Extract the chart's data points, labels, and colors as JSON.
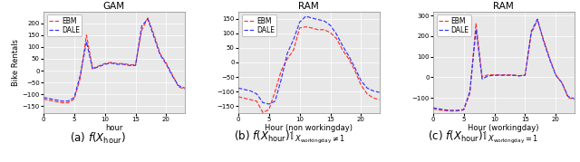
{
  "title1": "GAM",
  "title2": "RAM",
  "title3": "RAM",
  "xlabel1": "hour",
  "xlabel2": "Hour (non workingday)",
  "xlabel3": "Hour (workingday)",
  "ylabel": "Bike Rentals",
  "caption1": "(a) $f(X_{\\mathrm{hour}})$",
  "caption2": "(b) $f(X_{\\mathrm{hour}})\\mathbb{1}_{X_{\\mathrm{workingday}}\\neq 1}$",
  "caption3": "(c) $f(X_{\\mathrm{hour}})\\mathbb{1}_{X_{\\mathrm{workingday}}=1}$",
  "ebm_color": "#FF3333",
  "dale_color": "#3333FF",
  "hours": [
    0,
    1,
    2,
    3,
    4,
    5,
    6,
    7,
    8,
    9,
    10,
    11,
    12,
    13,
    14,
    15,
    16,
    17,
    18,
    19,
    20,
    21,
    22,
    23
  ],
  "plot1_ebm": [
    -120,
    -125,
    -130,
    -135,
    -135,
    -120,
    -30,
    150,
    10,
    20,
    30,
    35,
    30,
    30,
    25,
    25,
    170,
    222,
    152,
    72,
    32,
    -18,
    -68,
    -78
  ],
  "plot1_dale": [
    -113,
    -118,
    -123,
    -128,
    -128,
    -113,
    -18,
    122,
    7,
    17,
    27,
    32,
    27,
    27,
    22,
    22,
    188,
    218,
    142,
    67,
    27,
    -22,
    -63,
    -73
  ],
  "plot2_ebm": [
    -118,
    -123,
    -128,
    -133,
    -172,
    -162,
    -100,
    -28,
    12,
    42,
    118,
    122,
    118,
    112,
    112,
    102,
    82,
    42,
    12,
    -28,
    -78,
    -108,
    -122,
    -128
  ],
  "plot2_dale": [
    -88,
    -93,
    -98,
    -108,
    -138,
    -143,
    -133,
    -58,
    32,
    78,
    138,
    158,
    152,
    147,
    142,
    127,
    97,
    57,
    22,
    -18,
    -63,
    -88,
    -98,
    -103
  ],
  "plot3_ebm": [
    -153,
    -158,
    -162,
    -164,
    -163,
    -158,
    -78,
    262,
    2,
    12,
    12,
    12,
    12,
    12,
    7,
    12,
    212,
    278,
    182,
    92,
    12,
    -28,
    -98,
    -108
  ],
  "plot3_dale": [
    -148,
    -153,
    -158,
    -160,
    -160,
    -156,
    -68,
    232,
    -8,
    7,
    10,
    10,
    10,
    10,
    7,
    10,
    222,
    282,
    177,
    87,
    10,
    -26,
    -93,
    -103
  ],
  "ylim1": [
    -180,
    250
  ],
  "ylim2": [
    -175,
    175
  ],
  "ylim3": [
    -175,
    320
  ],
  "yticks1": [
    -150,
    -100,
    -50,
    0,
    50,
    100,
    150,
    200
  ],
  "yticks2": [
    -150,
    -100,
    -50,
    0,
    50,
    100,
    150
  ],
  "yticks3": [
    -100,
    0,
    100,
    200,
    300
  ],
  "xticks": [
    0,
    5,
    10,
    15,
    20
  ],
  "bg_color": "#E8E8E8",
  "fig_bg": "white",
  "title_fontsize": 7.5,
  "label_fontsize": 6,
  "tick_fontsize": 5,
  "legend_fontsize": 5.5,
  "caption_fontsize": 8.5
}
